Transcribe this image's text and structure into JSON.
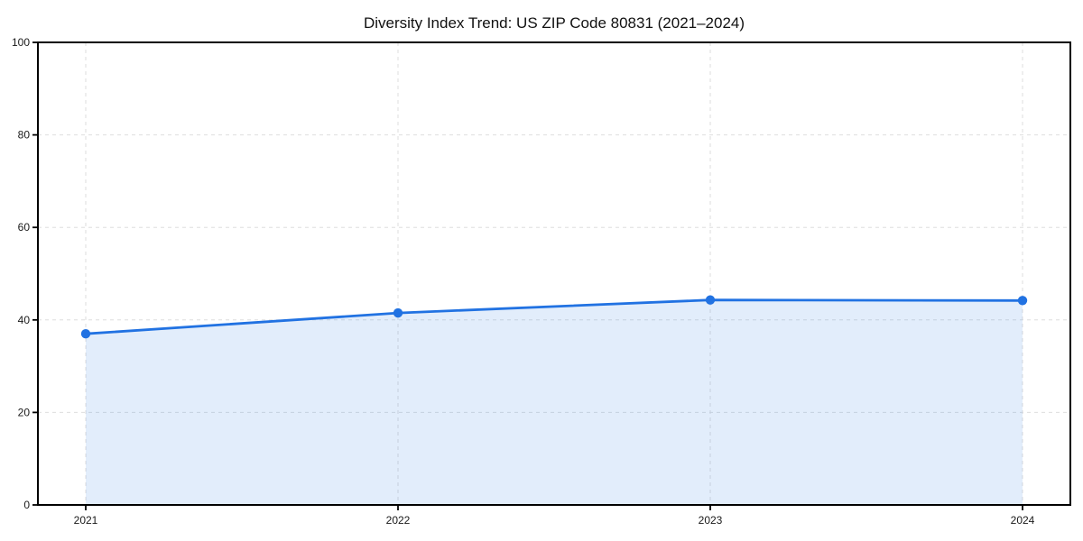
{
  "chart_data": {
    "type": "area",
    "title": "Diversity Index Trend: US ZIP Code 80831 (2021–2024)",
    "x": [
      "2021",
      "2022",
      "2023",
      "2024"
    ],
    "values": [
      37.0,
      41.5,
      44.3,
      44.2
    ],
    "series_name": "Diversity Index",
    "xlabel": "",
    "ylabel": "",
    "ylim": [
      0,
      100
    ],
    "yticks": [
      0,
      20,
      40,
      60,
      80,
      100
    ],
    "grid": "dashed, both axes",
    "legend": "none",
    "colors": {
      "line": "#2172e2",
      "marker": "#2172e2",
      "fill": "#2172e2",
      "fill_opacity": 0.13,
      "grid": "#dedede",
      "spine": "#000000",
      "tick_text": "#1a1a1a"
    }
  }
}
